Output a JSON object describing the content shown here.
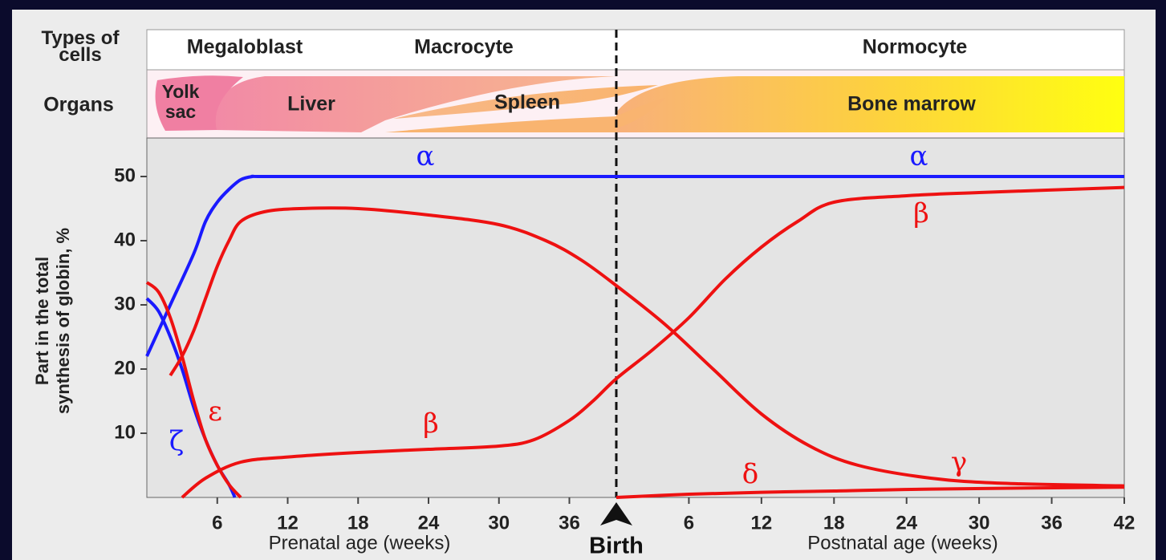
{
  "chart_data": {
    "type": "line",
    "cell_types": {
      "label": "Types of cells",
      "items": [
        "Megaloblast",
        "Macrocyte",
        "Normocyte"
      ]
    },
    "organs": {
      "label": "Organs",
      "items": [
        "Yolk sac",
        "Liver",
        "Spleen",
        "Bone marrow"
      ]
    },
    "ylabel": "Part in the total synthesis of globin, %",
    "xlabel_prenatal": "Prenatal age (weeks)",
    "xlabel_postnatal": "Postnatal age (weeks)",
    "birth": {
      "label": "Birth",
      "x": 40
    },
    "xlim": [
      0,
      82
    ],
    "ylim": [
      0,
      56
    ],
    "xticks": [
      6,
      12,
      18,
      24,
      30,
      36,
      {
        "value": 46,
        "label": "6"
      },
      {
        "value": 52,
        "label": "12"
      },
      {
        "value": 58,
        "label": "18"
      },
      {
        "value": 64,
        "label": "24"
      },
      {
        "value": 70,
        "label": "30"
      },
      {
        "value": 76,
        "label": "36"
      },
      {
        "value": 82,
        "label": "42"
      }
    ],
    "yticks": [
      10,
      20,
      30,
      40,
      50
    ],
    "series": [
      {
        "name": "α",
        "color": "#1a1aff",
        "x": [
          0,
          2,
          4,
          5,
          6,
          7,
          8,
          9,
          10,
          20,
          30,
          40,
          50,
          60,
          70,
          82
        ],
        "values": [
          22,
          30,
          38,
          43,
          46,
          48,
          49.5,
          50,
          50,
          50,
          50,
          50,
          50,
          50,
          50,
          50
        ]
      },
      {
        "name": "ζ",
        "color": "#1a1aff",
        "x": [
          0,
          1,
          2,
          3,
          4,
          5,
          6,
          7,
          7.5
        ],
        "values": [
          31,
          29,
          25,
          20,
          14,
          9,
          5,
          2,
          0
        ]
      },
      {
        "name": "ε",
        "color": "#ee1111",
        "x": [
          0,
          1,
          2,
          3,
          4,
          5,
          6,
          7,
          8
        ],
        "values": [
          33.5,
          32,
          28,
          22,
          15,
          9,
          5,
          2,
          0
        ]
      },
      {
        "name": "γ",
        "color": "#ee1111",
        "x": [
          2,
          3,
          4,
          5,
          6,
          7,
          8,
          10,
          13,
          18,
          24,
          30,
          34,
          37,
          40,
          44,
          48,
          52,
          56,
          60,
          66,
          72,
          82
        ],
        "values": [
          19,
          22,
          26,
          31,
          36,
          40,
          43,
          44.5,
          45,
          45,
          44,
          42.5,
          40,
          37,
          33,
          27,
          20,
          13,
          8,
          5,
          3,
          2.2,
          1.8
        ]
      },
      {
        "name": "β",
        "color": "#ee1111",
        "x": [
          3,
          5,
          8,
          12,
          18,
          24,
          30,
          33,
          36,
          38,
          40,
          43,
          46,
          49,
          52,
          55,
          58,
          64,
          70,
          82
        ],
        "values": [
          0,
          3,
          5.5,
          6.3,
          7,
          7.5,
          8,
          9,
          12,
          15,
          18.5,
          23,
          28,
          34,
          39,
          43,
          46,
          47,
          47.5,
          48.3
        ]
      },
      {
        "name": "δ",
        "color": "#ee1111",
        "x": [
          40,
          46,
          52,
          58,
          66,
          82
        ],
        "values": [
          0,
          0.5,
          0.8,
          1,
          1.3,
          1.6
        ]
      }
    ]
  }
}
